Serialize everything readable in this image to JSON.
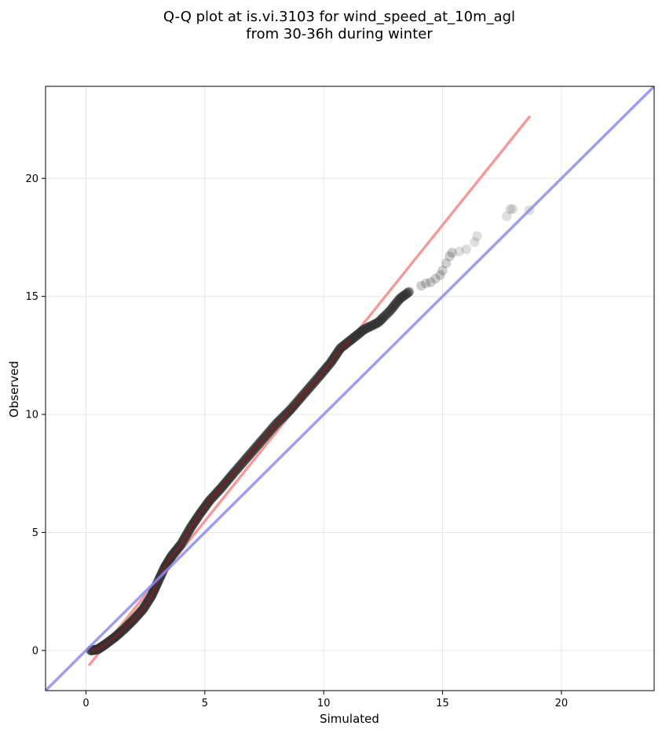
{
  "chart_data": {
    "type": "scatter",
    "title_line1": "Q-Q plot at is.vi.3103 for wind_speed_at_10m_agl",
    "title_line2": "from 30-36h during winter",
    "xlabel": "Simulated",
    "ylabel": "Observed",
    "xlim": [
      -1.7,
      23.9
    ],
    "ylim": [
      -1.7,
      23.9
    ],
    "xticks": [
      0,
      5,
      10,
      15,
      20
    ],
    "yticks": [
      0,
      5,
      10,
      15,
      20
    ],
    "grid": true,
    "point_color": "#333333",
    "identity_line": {
      "color": "#8c8cf0",
      "from": [
        -1.7,
        -1.7
      ],
      "to": [
        23.9,
        23.9
      ]
    },
    "fit_line": {
      "color": "#f59a9a",
      "from": [
        0.15,
        -0.6
      ],
      "to": [
        18.65,
        22.6
      ]
    },
    "core_trace_color": "#a01818",
    "quantile_curve": [
      [
        0.2,
        0.0
      ],
      [
        0.5,
        0.05
      ],
      [
        0.8,
        0.25
      ],
      [
        1.2,
        0.55
      ],
      [
        1.6,
        0.9
      ],
      [
        2.0,
        1.3
      ],
      [
        2.4,
        1.75
      ],
      [
        2.75,
        2.3
      ],
      [
        3.0,
        2.85
      ],
      [
        3.3,
        3.5
      ],
      [
        3.6,
        4.0
      ],
      [
        4.0,
        4.5
      ],
      [
        4.4,
        5.2
      ],
      [
        4.8,
        5.8
      ],
      [
        5.2,
        6.35
      ],
      [
        5.7,
        6.9
      ],
      [
        6.2,
        7.5
      ],
      [
        6.8,
        8.2
      ],
      [
        7.4,
        8.9
      ],
      [
        8.0,
        9.6
      ],
      [
        8.6,
        10.2
      ],
      [
        9.2,
        10.9
      ],
      [
        9.8,
        11.6
      ],
      [
        10.3,
        12.2
      ],
      [
        10.7,
        12.8
      ],
      [
        11.2,
        13.2
      ],
      [
        11.7,
        13.6
      ],
      [
        12.3,
        13.9
      ],
      [
        12.8,
        14.4
      ],
      [
        13.2,
        14.9
      ],
      [
        13.6,
        15.2
      ]
    ],
    "tail_points": [
      [
        14.1,
        15.45
      ],
      [
        14.3,
        15.55
      ],
      [
        14.5,
        15.6
      ],
      [
        14.7,
        15.75
      ],
      [
        14.9,
        15.9
      ],
      [
        15.0,
        16.1
      ],
      [
        15.15,
        16.4
      ],
      [
        15.3,
        16.7
      ],
      [
        15.4,
        16.85
      ],
      [
        15.7,
        16.9
      ],
      [
        16.0,
        17.0
      ],
      [
        16.35,
        17.3
      ],
      [
        16.45,
        17.55
      ],
      [
        17.7,
        18.4
      ],
      [
        17.85,
        18.7
      ],
      [
        17.95,
        18.7
      ],
      [
        18.65,
        18.65
      ]
    ]
  }
}
